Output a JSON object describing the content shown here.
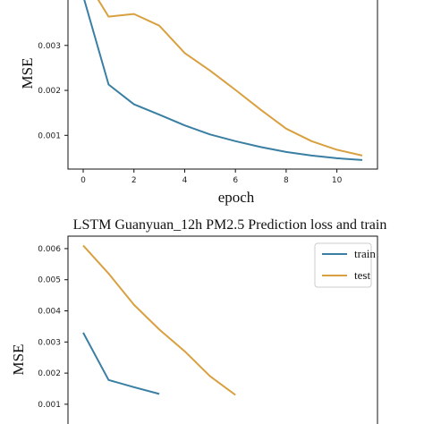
{
  "chart_data": [
    {
      "type": "line",
      "title": "",
      "xlabel": "epoch",
      "ylabel": "MSE",
      "xlim": [
        -0.6,
        11.6
      ],
      "ylim": [
        0.00025,
        0.00405
      ],
      "xticks": [
        0,
        2,
        4,
        6,
        8,
        10
      ],
      "yticks": [
        0.001,
        0.002,
        0.003
      ],
      "ytick_labels": [
        "0.001",
        "0.002",
        "0.003"
      ],
      "grid": false,
      "legend": "none",
      "series": [
        {
          "color": "#3a7fa3",
          "x": [
            0,
            1,
            2,
            3,
            4,
            5,
            6,
            7,
            8,
            9,
            10,
            11
          ],
          "y": [
            0.0041,
            0.00213,
            0.00169,
            0.00146,
            0.00122,
            0.00102,
            0.00087,
            0.00074,
            0.00063,
            0.00055,
            0.00049,
            0.00045
          ]
        },
        {
          "color": "#d9a040",
          "x": [
            0.5,
            1,
            2,
            3,
            4,
            5,
            6,
            7,
            8,
            9,
            10,
            11
          ],
          "y": [
            0.0041,
            0.00364,
            0.0037,
            0.00344,
            0.00283,
            0.00244,
            0.00201,
            0.00157,
            0.00115,
            0.00087,
            0.00068,
            0.00055
          ]
        }
      ]
    },
    {
      "type": "line",
      "title": "LSTM Guanyuan_12h PM2.5 Prediction loss and train",
      "xlabel": "",
      "ylabel": "MSE",
      "xlim": [
        -0.6,
        11.6
      ],
      "ylim": [
        0.00025,
        0.0064
      ],
      "yticks": [
        0.001,
        0.002,
        0.003,
        0.004,
        0.005,
        0.006
      ],
      "ytick_labels": [
        "0.001",
        "0.002",
        "0.003",
        "0.004",
        "0.005",
        "0.006"
      ],
      "grid": false,
      "legend": "top-right",
      "series": [
        {
          "name": "train",
          "color": "#3a7fa3",
          "x": [
            0,
            1,
            2,
            3
          ],
          "y": [
            0.0033,
            0.00178,
            0.00155,
            0.00133
          ]
        },
        {
          "name": "test",
          "color": "#d9a040",
          "x": [
            0,
            1,
            2,
            3,
            4,
            5,
            6
          ],
          "y": [
            0.0061,
            0.0052,
            0.0042,
            0.0034,
            0.0027,
            0.0019,
            0.0013
          ]
        }
      ]
    }
  ]
}
